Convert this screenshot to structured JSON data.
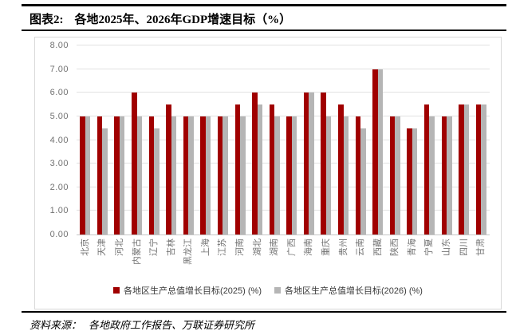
{
  "header": {
    "figure_label": "图表2:",
    "title": "各地2025年、2026年GDP增速目标（%）"
  },
  "footer": {
    "source_label": "资料来源：",
    "source_text": "各地政府工作报告、万联证券研究所"
  },
  "colors": {
    "series_2025": "#A00000",
    "series_2026": "#B5B5B5",
    "gridline": "#E2E2E2",
    "axis_line": "#C6C6C6",
    "axis_text": "#737373",
    "box_border": "#D9D9D9",
    "rule": "#000000"
  },
  "chart_data": {
    "type": "bar",
    "title": "各地2025年、2026年GDP增速目标（%）",
    "categories": [
      "北京",
      "天津",
      "河北",
      "内蒙古",
      "辽宁",
      "吉林",
      "黑龙江",
      "上海",
      "江苏",
      "河南",
      "湖北",
      "湖南",
      "广西",
      "海南",
      "重庆",
      "贵州",
      "云南",
      "西藏",
      "陕西",
      "青海",
      "宁夏",
      "山东",
      "四川",
      "甘肃"
    ],
    "series": [
      {
        "name": "各地区生产总值增长目标(2025) (%)",
        "color": "#A00000",
        "values": [
          5.0,
          5.0,
          5.0,
          6.0,
          5.0,
          5.5,
          5.0,
          5.0,
          5.0,
          5.5,
          6.0,
          5.5,
          5.0,
          6.0,
          6.0,
          5.5,
          5.0,
          7.0,
          5.0,
          4.5,
          5.5,
          5.0,
          5.5,
          5.5
        ]
      },
      {
        "name": "各地区生产总值增长目标(2026) (%)",
        "color": "#B5B5B5",
        "values": [
          5.0,
          4.5,
          5.0,
          5.0,
          4.5,
          5.0,
          5.0,
          5.0,
          5.0,
          5.0,
          5.5,
          5.0,
          5.0,
          6.0,
          5.0,
          5.0,
          4.5,
          7.0,
          5.0,
          4.5,
          5.0,
          5.0,
          5.5,
          5.5
        ]
      }
    ],
    "ylim": [
      0,
      8
    ],
    "ytick_labels": [
      "0.00",
      "1.00",
      "2.00",
      "3.00",
      "4.00",
      "5.00",
      "6.00",
      "7.00",
      "8.00"
    ],
    "grid": true,
    "legend_position": "bottom"
  }
}
